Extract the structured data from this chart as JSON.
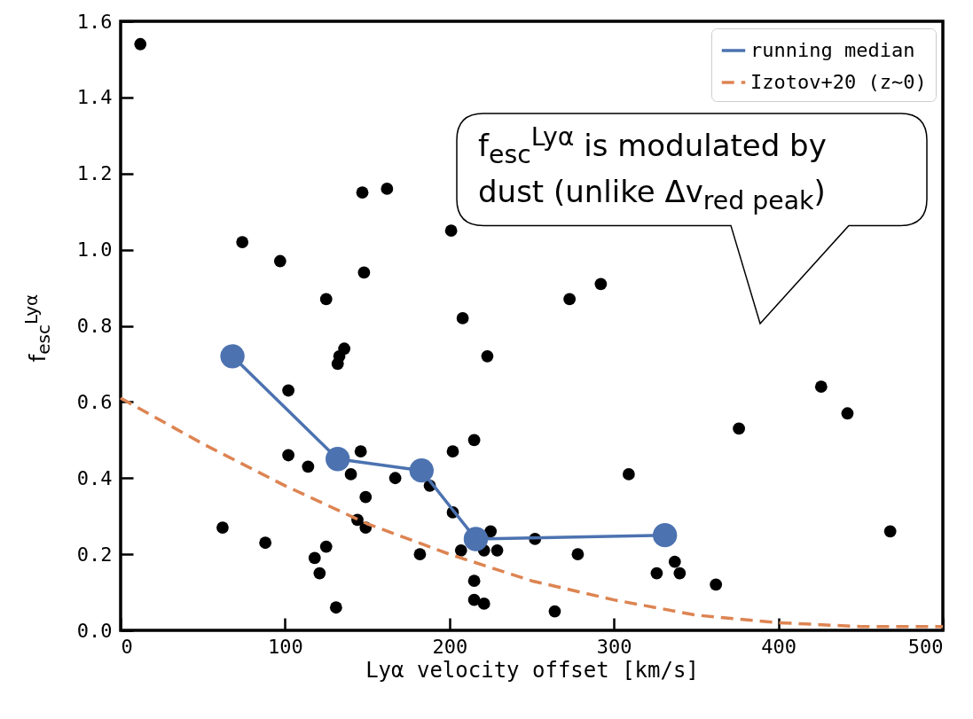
{
  "chart_data": {
    "type": "scatter",
    "xlabel": "Lyα velocity offset [km/s]",
    "ylabel": "f$_{esc}$$^{Lyα}$",
    "xlim": [
      0,
      500
    ],
    "xticks": [
      0,
      100,
      200,
      300,
      400,
      500
    ],
    "ylim": [
      0,
      1.6
    ],
    "yticks": [
      {
        "value": 0,
        "label": "0.0"
      },
      {
        "value": 0.2,
        "label": "0.2"
      },
      {
        "value": 0.4,
        "label": "0.4"
      },
      {
        "value": 0.6,
        "label": "0.6"
      },
      {
        "value": 0.8,
        "label": "0.8"
      },
      {
        "value": 1,
        "label": "1.0"
      },
      {
        "value": 1.2,
        "label": "1.2"
      },
      {
        "value": 1.4,
        "label": "1.4"
      },
      {
        "value": 1.6,
        "label": "1.6"
      }
    ],
    "legend": "top right",
    "annotations": [
      "f$_{esc}$$^{Lyα}$ is modulated by dust (unlike Δv$_{red peak}$)"
    ],
    "series": [
      {
        "type": "scatter",
        "color": "#000000",
        "marker": "circle",
        "x": [
          12,
          74,
          97,
          125,
          147,
          162,
          148,
          201,
          136,
          133,
          132,
          102,
          208,
          223,
          273,
          292,
          102,
          114,
          146,
          140,
          167,
          188,
          202,
          215,
          202,
          149,
          144,
          149,
          62,
          88,
          125,
          118,
          121,
          131,
          182,
          207,
          221,
          225,
          229,
          252,
          215,
          215,
          221,
          264,
          278,
          309,
          326,
          337,
          340,
          362,
          376,
          426,
          442,
          468
        ],
        "values": [
          1.54,
          1.02,
          0.97,
          0.87,
          1.15,
          1.16,
          0.94,
          1.05,
          0.74,
          0.72,
          0.7,
          0.63,
          0.82,
          0.72,
          0.87,
          0.91,
          0.46,
          0.43,
          0.47,
          0.41,
          0.4,
          0.38,
          0.47,
          0.5,
          0.31,
          0.35,
          0.29,
          0.27,
          0.27,
          0.23,
          0.22,
          0.19,
          0.15,
          0.06,
          0.2,
          0.21,
          0.21,
          0.26,
          0.21,
          0.24,
          0.13,
          0.08,
          0.07,
          0.05,
          0.2,
          0.41,
          0.15,
          0.18,
          0.15,
          0.12,
          0.53,
          0.64,
          0.57,
          0.26
        ]
      },
      {
        "type": "line",
        "name": "running median",
        "color": "#4c72b0",
        "marker": "circle",
        "line_style": "solid",
        "x": [
          68,
          132,
          183,
          216,
          331
        ],
        "values": [
          0.72,
          0.45,
          0.42,
          0.24,
          0.25
        ]
      },
      {
        "type": "line",
        "name": "Izotov+20 (z∼0)",
        "color": "#dd8452",
        "marker": "none",
        "line_style": "dashed",
        "x": [
          0,
          50,
          100,
          150,
          200,
          250,
          300,
          350,
          400,
          450,
          500
        ],
        "values": [
          0.61,
          0.49,
          0.38,
          0.28,
          0.2,
          0.13,
          0.08,
          0.04,
          0.02,
          0.01,
          0.01
        ]
      }
    ]
  }
}
